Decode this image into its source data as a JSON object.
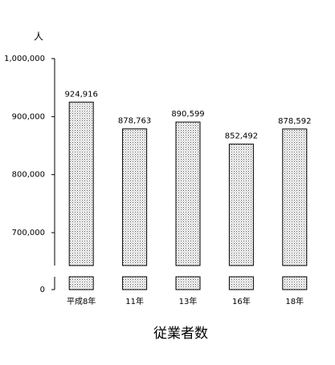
{
  "chart_data": {
    "type": "bar",
    "unit": "人",
    "x_label": "従業者数",
    "categories": [
      "平成8年",
      "11年",
      "13年",
      "16年",
      "18年"
    ],
    "values": [
      924916,
      878763,
      890599,
      852492,
      878592
    ],
    "value_labels": [
      "924,916",
      "878,763",
      "890,599",
      "852,492",
      "878,592"
    ],
    "ylim": [
      0,
      1000000
    ],
    "yticks": [
      0,
      {
        "value": 700000,
        "label": "700,000"
      },
      {
        "value": 800000,
        "label": "800,000"
      },
      {
        "value": 900000,
        "label": "900,000"
      },
      {
        "value": 1000000,
        "label": "1,000,000"
      }
    ],
    "axis_break": true,
    "color": "#000000"
  }
}
